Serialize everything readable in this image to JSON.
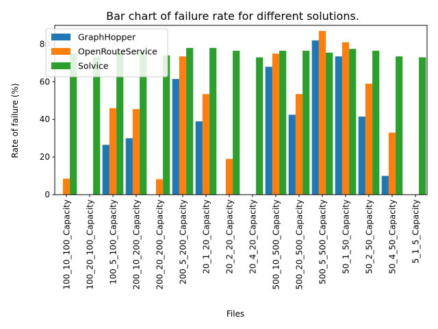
{
  "chart_data": {
    "type": "bar",
    "title": "Bar chart of failure rate for different solutions.",
    "xlabel": "Files",
    "ylabel": "Rate of failure (%)",
    "ylim": [
      0,
      90
    ],
    "yticks": [
      0,
      20,
      40,
      60,
      80
    ],
    "grid": false,
    "legend_position": "top-left",
    "categories": [
      "100_10_100_Capacity",
      "100_20_100_Capacity",
      "100_5_100_Capacity",
      "200_10_200_Capacity",
      "200_20_200_Capacity",
      "200_5_200_Capacity",
      "20_1_20_Capacity",
      "20_2_20_Capacity",
      "20_4_20_Capacity",
      "500_10_500_Capacity",
      "500_20_500_Capacity",
      "500_5_500_Capacity",
      "50_1_50_Capacity",
      "50_2_50_Capacity",
      "50_4_50_Capacity",
      "5_1_5_Capacity"
    ],
    "series": [
      {
        "name": "GraphHopper",
        "color": "#1f77b4",
        "values": [
          0,
          0,
          26.5,
          30,
          0,
          61.5,
          39,
          0,
          0,
          68,
          42.5,
          82,
          73.5,
          41.5,
          10,
          0
        ]
      },
      {
        "name": "OpenRouteService",
        "color": "#ff7f0e",
        "values": [
          8.5,
          0,
          46,
          45.5,
          8.2,
          73.5,
          53.5,
          19,
          0,
          75,
          53.5,
          87,
          81,
          59,
          33,
          0
        ]
      },
      {
        "name": "Solvice",
        "color": "#2ca02c",
        "values": [
          75,
          73,
          76,
          76,
          74,
          78,
          78,
          76.5,
          73,
          76.5,
          76.5,
          75.5,
          77.5,
          76.5,
          73.5,
          73
        ]
      }
    ]
  }
}
